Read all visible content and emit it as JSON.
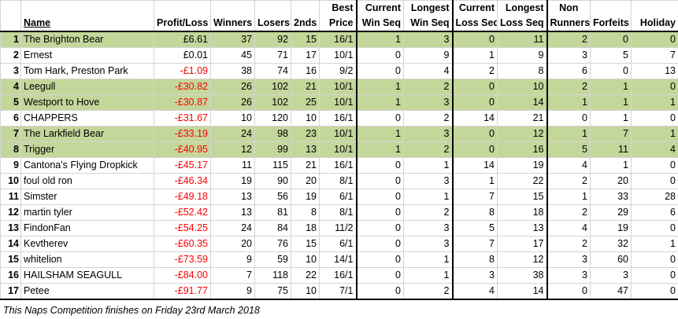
{
  "headers": {
    "name": "Name",
    "profit_loss": "Profit/Loss",
    "winners": "Winners",
    "losers": "Losers",
    "seconds": "2nds",
    "best_price": [
      "Best",
      "Price"
    ],
    "current_win_seq": [
      "Current",
      "Win Seq"
    ],
    "longest_win_seq": [
      "Longest",
      "Win Seq"
    ],
    "current_loss_seq": [
      "Current",
      "Loss Seq"
    ],
    "longest_loss_seq": [
      "Longest",
      "Loss Seq"
    ],
    "non_runners": [
      "Non",
      "Runners"
    ],
    "forfeits": "Forfeits",
    "holiday": "Holiday"
  },
  "rows": [
    {
      "rank": "1",
      "name": "The Brighton Bear",
      "pl": "£6.61",
      "w": "37",
      "l": "92",
      "s": "15",
      "bp": "16/1",
      "cws": "1",
      "lws": "3",
      "cls": "0",
      "lls": "11",
      "nr": "2",
      "f": "0",
      "h": "0",
      "hl": true,
      "neg": false
    },
    {
      "rank": "2",
      "name": "Ernest",
      "pl": "£0.01",
      "w": "45",
      "l": "71",
      "s": "17",
      "bp": "10/1",
      "cws": "0",
      "lws": "9",
      "cls": "1",
      "lls": "9",
      "nr": "3",
      "f": "5",
      "h": "7",
      "hl": false,
      "neg": false
    },
    {
      "rank": "3",
      "name": "Tom Hark, Preston Park",
      "pl": "-£1.09",
      "w": "38",
      "l": "74",
      "s": "16",
      "bp": "9/2",
      "cws": "0",
      "lws": "4",
      "cls": "2",
      "lls": "8",
      "nr": "6",
      "f": "0",
      "h": "13",
      "hl": false,
      "neg": true
    },
    {
      "rank": "4",
      "name": "Leegull",
      "pl": "-£30.82",
      "w": "26",
      "l": "102",
      "s": "21",
      "bp": "10/1",
      "cws": "1",
      "lws": "2",
      "cls": "0",
      "lls": "10",
      "nr": "2",
      "f": "1",
      "h": "0",
      "hl": true,
      "neg": true
    },
    {
      "rank": "5",
      "name": "Westport to Hove",
      "pl": "-£30.87",
      "w": "26",
      "l": "102",
      "s": "25",
      "bp": "10/1",
      "cws": "1",
      "lws": "3",
      "cls": "0",
      "lls": "14",
      "nr": "1",
      "f": "1",
      "h": "1",
      "hl": true,
      "neg": true
    },
    {
      "rank": "6",
      "name": "CHAPPERS",
      "pl": "-£31.67",
      "w": "10",
      "l": "120",
      "s": "10",
      "bp": "16/1",
      "cws": "0",
      "lws": "2",
      "cls": "14",
      "lls": "21",
      "nr": "0",
      "f": "1",
      "h": "0",
      "hl": false,
      "neg": true
    },
    {
      "rank": "7",
      "name": "The Larkfield Bear",
      "pl": "-£33.19",
      "w": "24",
      "l": "98",
      "s": "23",
      "bp": "10/1",
      "cws": "1",
      "lws": "3",
      "cls": "0",
      "lls": "12",
      "nr": "1",
      "f": "7",
      "h": "1",
      "hl": true,
      "neg": true
    },
    {
      "rank": "8",
      "name": "Trigger",
      "pl": "-£40.95",
      "w": "12",
      "l": "99",
      "s": "13",
      "bp": "10/1",
      "cws": "1",
      "lws": "2",
      "cls": "0",
      "lls": "16",
      "nr": "5",
      "f": "11",
      "h": "4",
      "hl": true,
      "neg": true
    },
    {
      "rank": "9",
      "name": "Cantona's Flying Dropkick",
      "pl": "-£45.17",
      "w": "11",
      "l": "115",
      "s": "21",
      "bp": "16/1",
      "cws": "0",
      "lws": "1",
      "cls": "14",
      "lls": "19",
      "nr": "4",
      "f": "1",
      "h": "0",
      "hl": false,
      "neg": true
    },
    {
      "rank": "10",
      "name": "foul old ron",
      "pl": "-£46.34",
      "w": "19",
      "l": "90",
      "s": "20",
      "bp": "8/1",
      "cws": "0",
      "lws": "3",
      "cls": "1",
      "lls": "22",
      "nr": "2",
      "f": "20",
      "h": "0",
      "hl": false,
      "neg": true
    },
    {
      "rank": "11",
      "name": "Simster",
      "pl": "-£49.18",
      "w": "13",
      "l": "56",
      "s": "19",
      "bp": "6/1",
      "cws": "0",
      "lws": "1",
      "cls": "7",
      "lls": "15",
      "nr": "1",
      "f": "33",
      "h": "28",
      "hl": false,
      "neg": true
    },
    {
      "rank": "12",
      "name": "martin tyler",
      "pl": "-£52.42",
      "w": "13",
      "l": "81",
      "s": "8",
      "bp": "8/1",
      "cws": "0",
      "lws": "2",
      "cls": "8",
      "lls": "18",
      "nr": "2",
      "f": "29",
      "h": "6",
      "hl": false,
      "neg": true
    },
    {
      "rank": "13",
      "name": "FindonFan",
      "pl": "-£54.25",
      "w": "24",
      "l": "84",
      "s": "18",
      "bp": "11/2",
      "cws": "0",
      "lws": "3",
      "cls": "5",
      "lls": "13",
      "nr": "4",
      "f": "19",
      "h": "0",
      "hl": false,
      "neg": true
    },
    {
      "rank": "14",
      "name": "Kevtherev",
      "pl": "-£60.35",
      "w": "20",
      "l": "76",
      "s": "15",
      "bp": "6/1",
      "cws": "0",
      "lws": "3",
      "cls": "7",
      "lls": "17",
      "nr": "2",
      "f": "32",
      "h": "1",
      "hl": false,
      "neg": true
    },
    {
      "rank": "15",
      "name": "whitelion",
      "pl": "-£73.59",
      "w": "9",
      "l": "59",
      "s": "10",
      "bp": "14/1",
      "cws": "0",
      "lws": "1",
      "cls": "8",
      "lls": "12",
      "nr": "3",
      "f": "60",
      "h": "0",
      "hl": false,
      "neg": true
    },
    {
      "rank": "16",
      "name": "HAILSHAM SEAGULL",
      "pl": "-£84.00",
      "w": "7",
      "l": "118",
      "s": "22",
      "bp": "16/1",
      "cws": "0",
      "lws": "1",
      "cls": "3",
      "lls": "38",
      "nr": "3",
      "f": "3",
      "h": "0",
      "hl": false,
      "neg": true
    },
    {
      "rank": "17",
      "name": "Petee",
      "pl": "-£91.77",
      "w": "9",
      "l": "75",
      "s": "10",
      "bp": "7/1",
      "cws": "0",
      "lws": "2",
      "cls": "4",
      "lls": "14",
      "nr": "0",
      "f": "47",
      "h": "0",
      "hl": false,
      "neg": true
    }
  ],
  "footnote": "This Naps Competition finishes on Friday 23rd March 2018",
  "colors": {
    "highlight": "#c4d79b",
    "negative": "#ff0000",
    "gridline": "#d4d4d4"
  }
}
